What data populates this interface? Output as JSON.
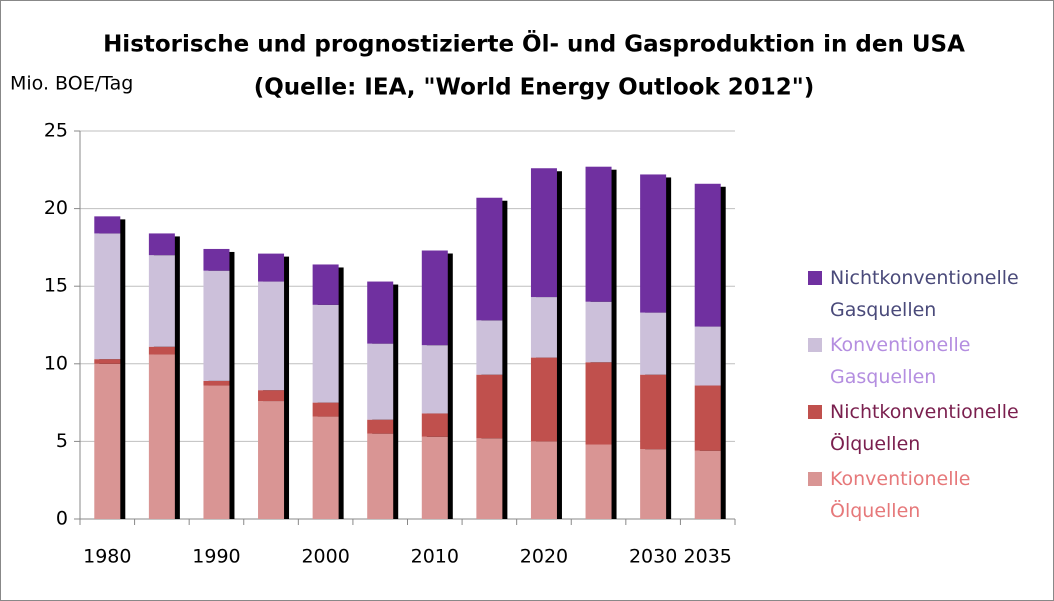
{
  "chart_data": {
    "type": "stacked_bar",
    "title": "Historische und prognostizierte Öl- und Gasproduktion in den USA",
    "subtitle": "(Quelle: IEA, \"World Energy Outlook 2012\")",
    "y_label": "Mio. BOE/Tag",
    "categories": [
      "1980",
      null,
      "1990",
      null,
      "2000",
      null,
      "2010",
      null,
      "2020",
      null,
      "2030",
      "2035"
    ],
    "series": [
      {
        "name": "Konventionelle Ölquellen",
        "color": "#d99594",
        "legend_text_color": "#e6787a",
        "values": [
          10.0,
          10.6,
          8.6,
          7.6,
          6.6,
          5.5,
          5.3,
          5.2,
          5.0,
          4.8,
          4.5,
          4.4
        ]
      },
      {
        "name": "Nichtkonventionelle Ölquellen",
        "color": "#c0504d",
        "legend_text_color": "#7a1f4e",
        "values": [
          0.3,
          0.5,
          0.3,
          0.7,
          0.9,
          0.9,
          1.5,
          4.1,
          5.4,
          5.3,
          4.8,
          4.2
        ]
      },
      {
        "name": "Konventionelle Gasquellen",
        "color": "#ccc0da",
        "legend_text_color": "#b48ee0",
        "values": [
          8.1,
          5.9,
          7.1,
          7.0,
          6.3,
          4.9,
          4.4,
          3.5,
          3.9,
          3.9,
          4.0,
          3.8
        ]
      },
      {
        "name": "Nichtkonventionelle Gasquellen",
        "color": "#7030a0",
        "legend_text_color": "#4a4a7a",
        "values": [
          1.1,
          1.4,
          1.4,
          1.8,
          2.6,
          4.0,
          6.1,
          7.9,
          8.3,
          8.7,
          8.9,
          9.2
        ]
      }
    ],
    "ylim": [
      0,
      25
    ],
    "yticks": [
      0,
      5,
      10,
      15,
      20,
      25
    ],
    "grid": true,
    "shadow": true,
    "legend": "right"
  }
}
